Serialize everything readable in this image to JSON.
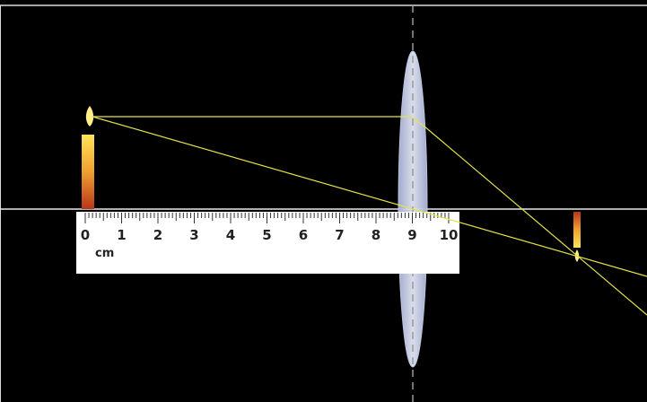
{
  "ruler": {
    "ticks": [
      0,
      1,
      2,
      3,
      4,
      5,
      6,
      7,
      8,
      9,
      10
    ],
    "unit": "cm"
  }
}
